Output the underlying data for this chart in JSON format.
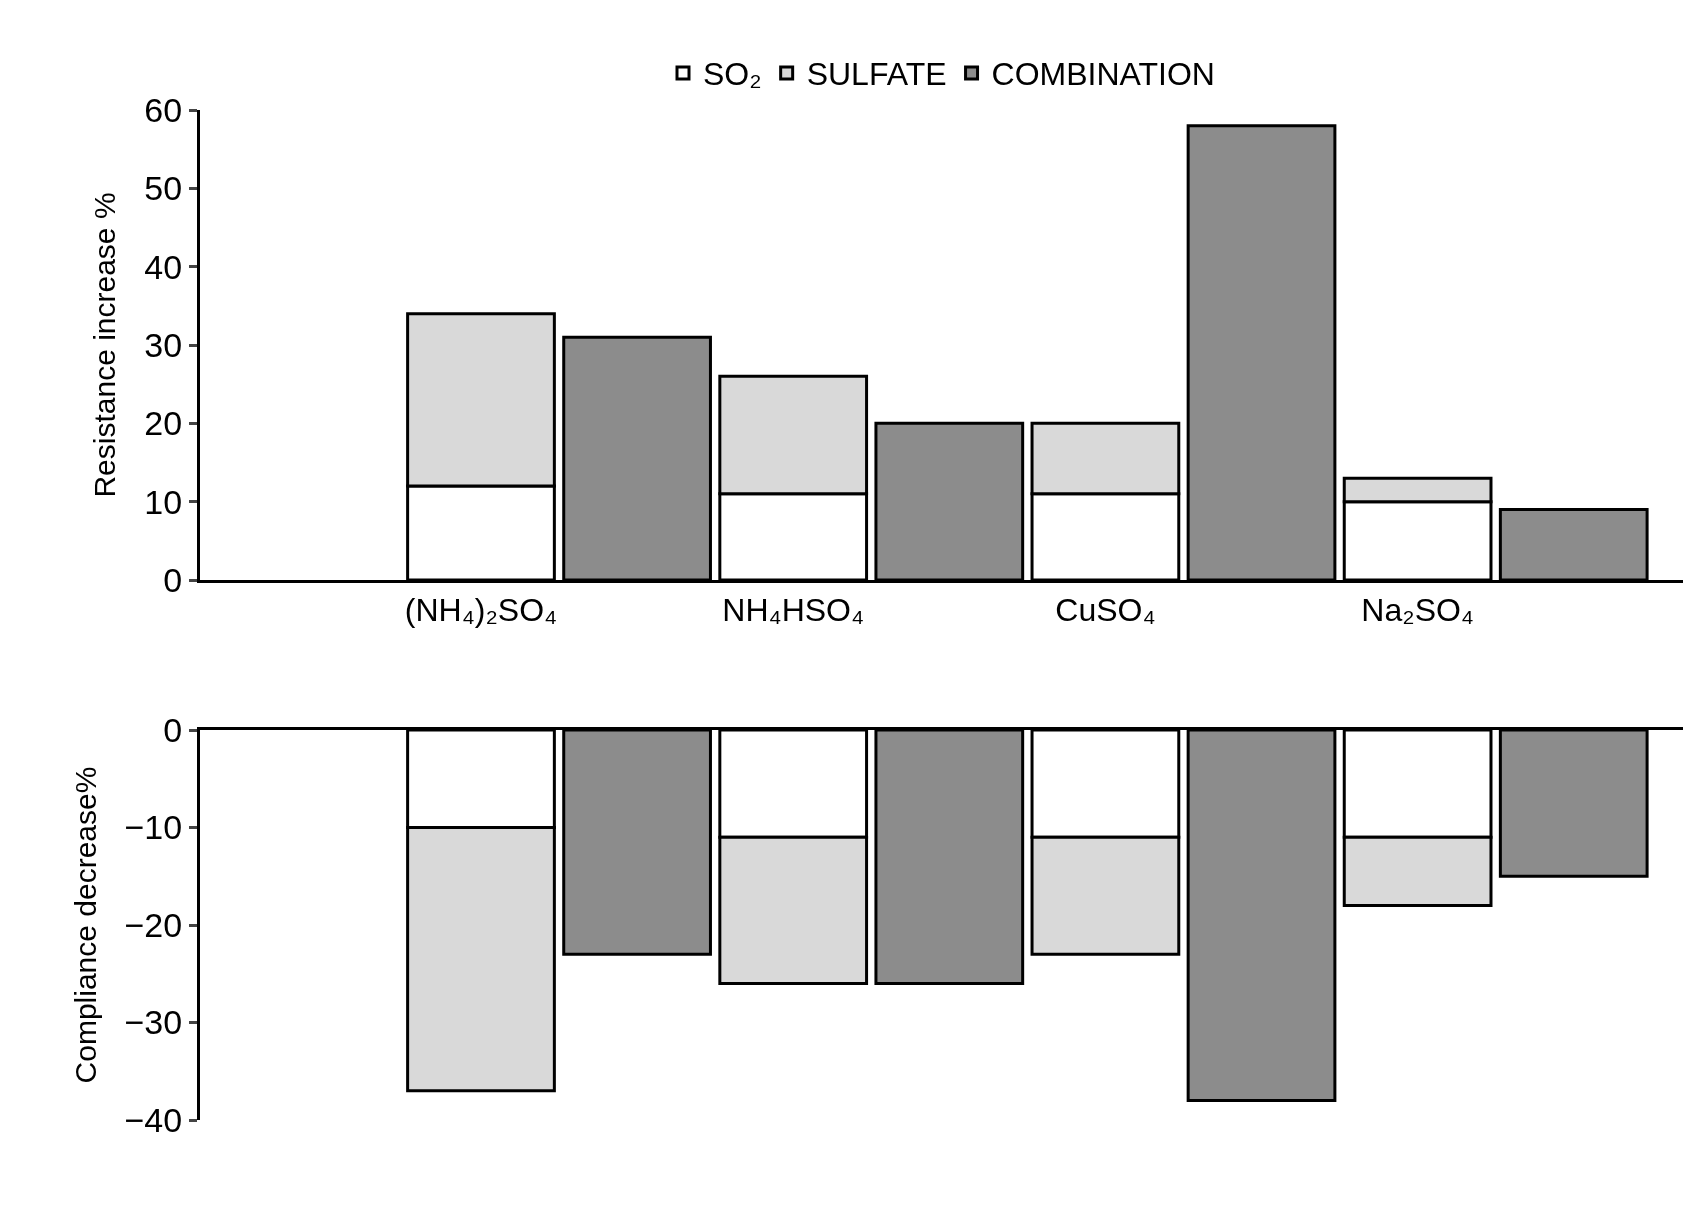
{
  "chart_data": [
    {
      "type": "bar",
      "ylabel": "Resistance increase %",
      "categories": [
        "(NH₄)₂SO₄",
        null,
        "NH₄HSO₄",
        null,
        "CuSO₄",
        null,
        "Na₂SO₄",
        null
      ],
      "stacked": true,
      "ylim": [
        0,
        60
      ],
      "yticks": [
        0,
        10,
        20,
        30,
        40,
        50,
        60
      ],
      "legend": "top",
      "series": [
        {
          "name": "SO₂",
          "color": "#ffffff",
          "values": [
            12,
            null,
            11,
            null,
            11,
            null,
            10,
            null
          ]
        },
        {
          "name": "SULFATE",
          "color": "#d9d9d9",
          "values": [
            22,
            null,
            15,
            null,
            9,
            null,
            3,
            null
          ]
        },
        {
          "name": "COMBINATION",
          "color": "#8c8c8c",
          "values": [
            null,
            31,
            null,
            20,
            null,
            58,
            null,
            9
          ]
        }
      ]
    },
    {
      "type": "bar",
      "ylabel": "Compliance decrease%",
      "categories": [
        null,
        null,
        null,
        null,
        null,
        null,
        null,
        null
      ],
      "stacked": true,
      "ylim": [
        -40,
        0
      ],
      "yticks": [
        -40,
        -30,
        -20,
        -10,
        0
      ],
      "tick_labels": "y",
      "series": [
        {
          "color": "#ffffff",
          "values": [
            -10,
            null,
            -11,
            null,
            -11,
            null,
            -11,
            null
          ]
        },
        {
          "color": "#d9d9d9",
          "values": [
            -27,
            null,
            -15,
            null,
            -12,
            null,
            -7,
            null
          ]
        },
        {
          "color": "#8c8c8c",
          "values": [
            null,
            -23,
            null,
            -26,
            null,
            -38,
            null,
            -15
          ]
        }
      ]
    }
  ]
}
